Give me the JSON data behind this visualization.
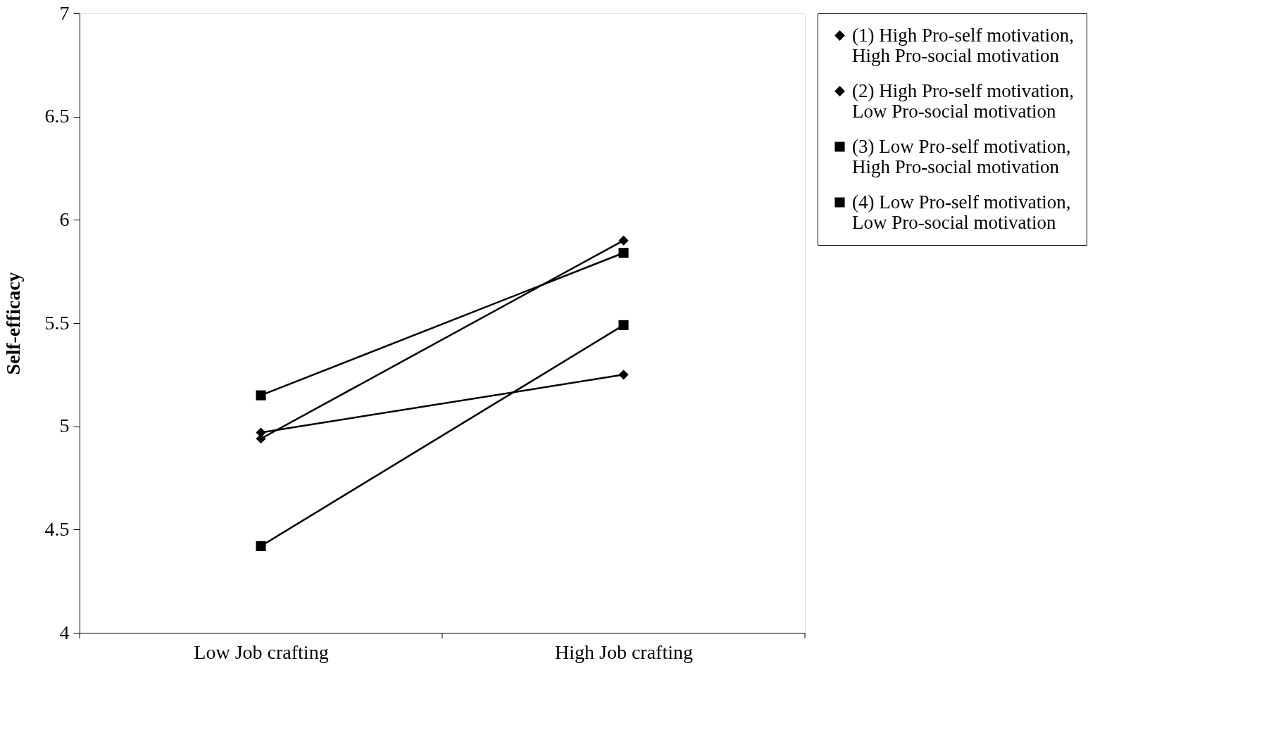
{
  "chart_data": {
    "type": "line",
    "ylabel": "Self-efficacy",
    "categories": [
      "Low Job crafting",
      "High Job crafting"
    ],
    "series": [
      {
        "name": "(1) High Pro-self motivation, High Pro-social motivation",
        "color": "#000000",
        "marker": "diamond",
        "values": [
          4.94,
          5.9
        ]
      },
      {
        "name": "(2) High Pro-self motivation, Low Pro-social motivation",
        "color": "#000000",
        "marker": "diamond",
        "values": [
          4.97,
          5.25
        ]
      },
      {
        "name": "(3) Low Pro-self motivation, High Pro-social motivation",
        "color": "#000000",
        "marker": "square",
        "values": [
          5.15,
          5.84
        ]
      },
      {
        "name": "(4) Low Pro-self motivation, Low Pro-social motivation",
        "color": "#000000",
        "marker": "square",
        "values": [
          4.42,
          5.49
        ]
      }
    ],
    "ylim": [
      4,
      7
    ],
    "yticks": [
      4,
      4.5,
      5,
      5.5,
      6,
      6.5,
      7
    ],
    "grid": false,
    "legend": "right",
    "line_style": "solid"
  }
}
